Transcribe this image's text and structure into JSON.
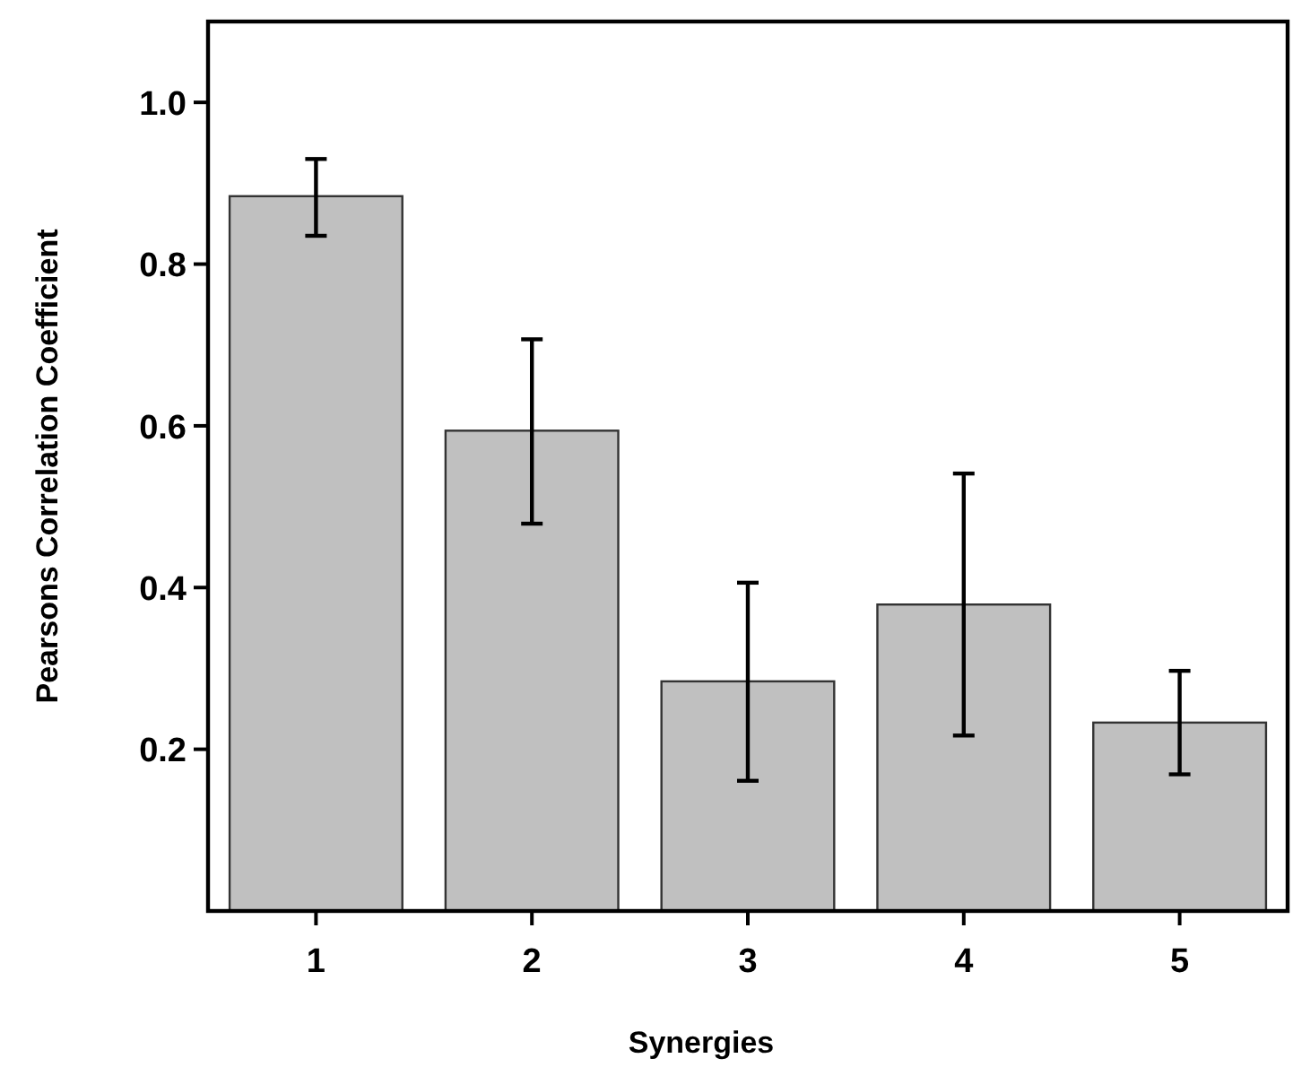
{
  "chart_data": {
    "type": "bar",
    "xlabel": "Synergies",
    "ylabel": "Pearsons Correlation Coefficient",
    "categories": [
      "1",
      "2",
      "3",
      "4",
      "5"
    ],
    "values": [
      0.884,
      0.594,
      0.284,
      0.379,
      0.233
    ],
    "errors": [
      [
        0.835,
        0.93
      ],
      [
        0.479,
        0.707
      ],
      [
        0.161,
        0.406
      ],
      [
        0.217,
        0.541
      ],
      [
        0.169,
        0.297
      ]
    ],
    "color": "#c0c0c0",
    "ylim": [
      0,
      1.1
    ],
    "yticks": [
      0.2,
      0.4,
      0.6,
      0.8,
      {
        "value": 1,
        "label": "1.0"
      }
    ],
    "grid": false
  }
}
